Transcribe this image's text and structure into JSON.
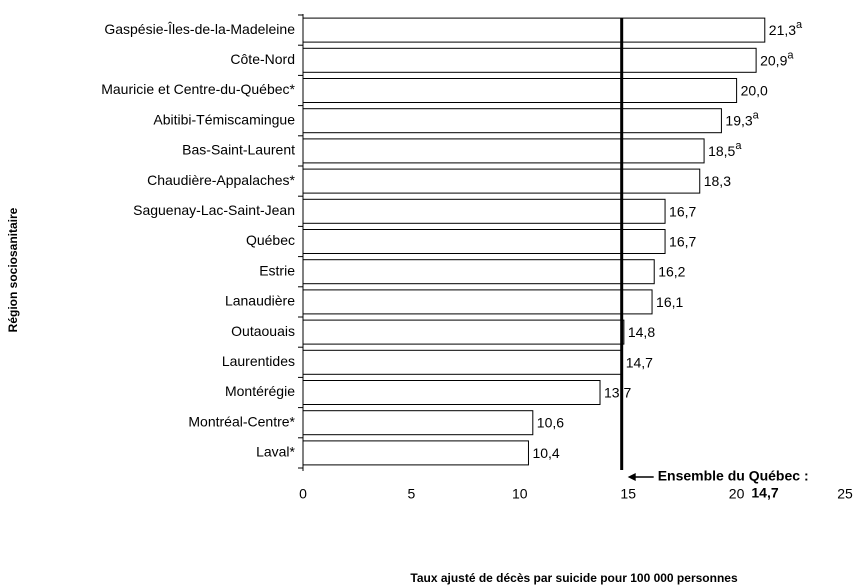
{
  "chart_data": {
    "type": "hbar",
    "y_label": "Région sociosanitaire",
    "x_label": "Taux ajusté de décès par suicide pour 100 000 personnes",
    "categories": [
      "Gaspésie-Îles-de-la-Madeleine",
      "Côte-Nord",
      "Mauricie et Centre-du-Québec*",
      "Abitibi-Témiscamingue",
      "Bas-Saint-Laurent",
      "Chaudière-Appalaches*",
      "Saguenay-Lac-Saint-Jean",
      "Québec",
      "Estrie",
      "Lanaudière",
      "Outaouais",
      "Laurentides",
      "Montérégie",
      "Montréal-Centre*",
      "Laval*"
    ],
    "values": [
      21.3,
      20.9,
      20.0,
      19.3,
      18.5,
      18.3,
      16.7,
      16.7,
      16.2,
      16.1,
      14.8,
      14.7,
      13.7,
      10.6,
      10.4
    ],
    "value_labels": [
      "21,3",
      "20,9",
      "20,0",
      "19,3",
      "18,5",
      "18,3",
      "16,7",
      "16,7",
      "16,2",
      "16,1",
      "14,8",
      "14,7",
      "13,7",
      "10,6",
      "10,4"
    ],
    "value_label_notes": [
      "a",
      "a",
      null,
      "a",
      "a",
      null,
      null,
      null,
      null,
      null,
      null,
      null,
      null,
      null,
      null
    ],
    "color": "#ffffff",
    "xlim": [
      0,
      25
    ],
    "xticks": [
      0,
      5,
      10,
      15,
      20,
      25
    ],
    "reference_line": {
      "value": 14.7,
      "label": "Ensemble du Québec :",
      "value_label": "14,7"
    }
  }
}
